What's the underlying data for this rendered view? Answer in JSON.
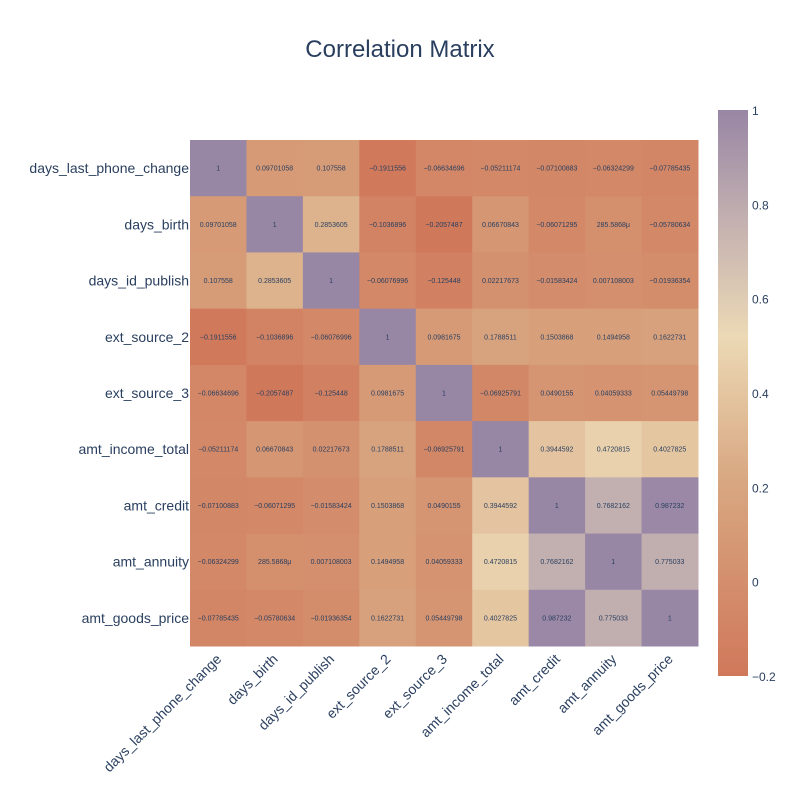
{
  "chart_data": {
    "type": "heatmap",
    "title": "Correlation Matrix",
    "x_categories": [
      "days_last_phone_change",
      "days_birth",
      "days_id_publish",
      "ext_source_2",
      "ext_source_3",
      "amt_income_total",
      "amt_credit",
      "amt_annuity",
      "amt_goods_price"
    ],
    "y_categories": [
      "days_last_phone_change",
      "days_birth",
      "days_id_publish",
      "ext_source_2",
      "ext_source_3",
      "amt_income_total",
      "amt_credit",
      "amt_annuity",
      "amt_goods_price"
    ],
    "values": [
      [
        1,
        0.09701058,
        0.107558,
        -0.1911556,
        -0.06634696,
        -0.05211174,
        -0.07100883,
        -0.06324299,
        -0.07785435
      ],
      [
        0.09701058,
        1,
        0.2853605,
        -0.1036896,
        -0.2057487,
        0.06670843,
        -0.06071295,
        0.0002855868,
        -0.05780634
      ],
      [
        0.107558,
        0.2853605,
        1,
        -0.06076996,
        -0.125448,
        0.02217673,
        -0.01583424,
        0.007108003,
        -0.01936354
      ],
      [
        -0.1911556,
        -0.1036896,
        -0.06076996,
        1,
        0.0981675,
        0.1788511,
        0.1503868,
        0.1494958,
        0.1622731
      ],
      [
        -0.06634696,
        -0.2057487,
        -0.125448,
        0.0981675,
        1,
        -0.06925791,
        0.0490155,
        0.04059333,
        0.05449798
      ],
      [
        -0.05211174,
        0.06670843,
        0.02217673,
        0.1788511,
        -0.06925791,
        1,
        0.3944592,
        0.4720815,
        0.4027825
      ],
      [
        -0.07100883,
        -0.06071295,
        -0.01583424,
        0.1503868,
        0.0490155,
        0.3944592,
        1,
        0.7682162,
        0.987232
      ],
      [
        -0.06324299,
        0.0002855868,
        0.007108003,
        0.1494958,
        0.04059333,
        0.4720815,
        0.7682162,
        1,
        0.775033
      ],
      [
        -0.07785435,
        -0.05780634,
        -0.01936354,
        0.1622731,
        0.05449798,
        0.4027825,
        0.987232,
        0.775033,
        1
      ]
    ],
    "cell_labels": [
      [
        "1",
        "0.09701058",
        "0.107558",
        "−0.1911556",
        "−0.06634696",
        "−0.05211174",
        "−0.07100883",
        "−0.06324299",
        "−0.07785435"
      ],
      [
        "0.09701058",
        "1",
        "0.2853605",
        "−0.1036896",
        "−0.2057487",
        "0.06670843",
        "−0.06071295",
        "285.5868μ",
        "−0.05780634"
      ],
      [
        "0.107558",
        "0.2853605",
        "1",
        "−0.06076996",
        "−0.125448",
        "0.02217673",
        "−0.01583424",
        "0.007108003",
        "−0.01936354"
      ],
      [
        "−0.1911556",
        "−0.1036896",
        "−0.06076996",
        "1",
        "0.0981675",
        "0.1788511",
        "0.1503868",
        "0.1494958",
        "0.1622731"
      ],
      [
        "−0.06634696",
        "−0.2057487",
        "−0.125448",
        "0.0981675",
        "1",
        "−0.06925791",
        "0.0490155",
        "0.04059333",
        "0.05449798"
      ],
      [
        "−0.05211174",
        "0.06670843",
        "0.02217673",
        "0.1788511",
        "−0.06925791",
        "1",
        "0.3944592",
        "0.4720815",
        "0.4027825"
      ],
      [
        "−0.07100883",
        "−0.06071295",
        "−0.01583424",
        "0.1503868",
        "0.0490155",
        "0.3944592",
        "1",
        "0.7682162",
        "0.987232"
      ],
      [
        "−0.06324299",
        "285.5868μ",
        "0.007108003",
        "0.1494958",
        "0.04059333",
        "0.4720815",
        "0.7682162",
        "1",
        "0.775033"
      ],
      [
        "−0.07785435",
        "−0.05780634",
        "−0.01936354",
        "0.1622731",
        "0.05449798",
        "0.4027825",
        "0.987232",
        "0.775033",
        "1"
      ]
    ],
    "zlim": [
      -0.2,
      1
    ],
    "colorbar": {
      "ticks": [
        1,
        0.8,
        0.6,
        0.4,
        0.2,
        0,
        -0.2
      ],
      "tick_labels": [
        "1",
        "0.8",
        "0.6",
        "0.4",
        "0.2",
        "0",
        "−0.2"
      ]
    },
    "colorscale": [
      [
        0,
        "#d0785a"
      ],
      [
        0.35,
        "#d8a882"
      ],
      [
        0.6,
        "#ecd9b5"
      ],
      [
        0.8,
        "#c4b1b0"
      ],
      [
        1,
        "#9886a5"
      ]
    ],
    "legend_position": "right",
    "grid": false
  }
}
